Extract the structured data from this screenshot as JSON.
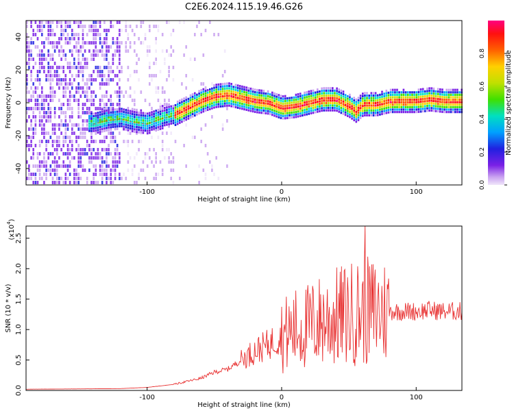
{
  "page": {
    "title": "C2E6.2024.115.19.46.G26"
  },
  "colors": {
    "background": "#ffffff",
    "axis": "#000000",
    "snr_line": "#e83030",
    "colormap": [
      "#f0e6fa",
      "#c8a0f0",
      "#7a20e6",
      "#2020e0",
      "#00a0ff",
      "#00e0c0",
      "#40e000",
      "#c0e000",
      "#ffd000",
      "#ff6000",
      "#ff1010",
      "#ff0080"
    ]
  },
  "chart_data": [
    {
      "type": "heatmap",
      "name": "spectrogram",
      "title": "C2E6.2024.115.19.46.G26",
      "xlabel": "Height of straight line (km)",
      "ylabel": "Frequency (Hz)",
      "xlim": [
        -190,
        134
      ],
      "ylim": [
        -50,
        50
      ],
      "xticks": [
        -100,
        0,
        100
      ],
      "yticks": [
        -40,
        -20,
        0,
        20,
        40
      ],
      "colorbar": {
        "label": "Normalized spectral amplitude",
        "range": [
          0,
          1
        ],
        "ticks": [
          "0.0",
          "0.2",
          "0.4",
          "0.6",
          "0.8"
        ]
      },
      "ridge": {
        "x": [
          -140,
          -130,
          -120,
          -110,
          -100,
          -90,
          -80,
          -70,
          -60,
          -50,
          -40,
          -30,
          -20,
          -10,
          0,
          10,
          20,
          30,
          40,
          50,
          55,
          60,
          70,
          80,
          90,
          100,
          110,
          120,
          134
        ],
        "y": [
          -13,
          -11,
          -10,
          -12,
          -13,
          -10,
          -8,
          -4,
          0,
          3,
          4,
          2,
          0,
          -1,
          -4,
          -3,
          -1,
          1,
          1,
          -3,
          -6,
          -2,
          -2,
          0,
          0,
          0,
          1,
          0,
          0
        ]
      }
    },
    {
      "type": "line",
      "name": "snr",
      "xlabel": "Height of straight line (km)",
      "ylabel": "SNR (10 * v/v)",
      "y_multiplier": "(x10^4)",
      "xlim": [
        -190,
        134
      ],
      "ylim": [
        0,
        2.7
      ],
      "xticks": [
        -100,
        0,
        100
      ],
      "yticks": [
        "0.0",
        "0.5",
        "1.0",
        "1.5",
        "2.0",
        "2.5"
      ],
      "envelope": {
        "x": [
          -190,
          -120,
          -100,
          -80,
          -60,
          -50,
          -40,
          -30,
          -20,
          -10,
          0,
          10,
          20,
          30,
          40,
          50,
          60,
          70,
          80,
          90,
          100,
          110,
          120,
          134
        ],
        "y": [
          0.02,
          0.03,
          0.05,
          0.1,
          0.2,
          0.3,
          0.35,
          0.5,
          0.65,
          0.75,
          0.9,
          1.0,
          1.05,
          1.15,
          1.2,
          1.25,
          1.3,
          1.3,
          1.3,
          1.3,
          1.3,
          1.32,
          1.3,
          1.3
        ]
      },
      "peak": {
        "x": 62,
        "y": 2.7
      }
    }
  ]
}
